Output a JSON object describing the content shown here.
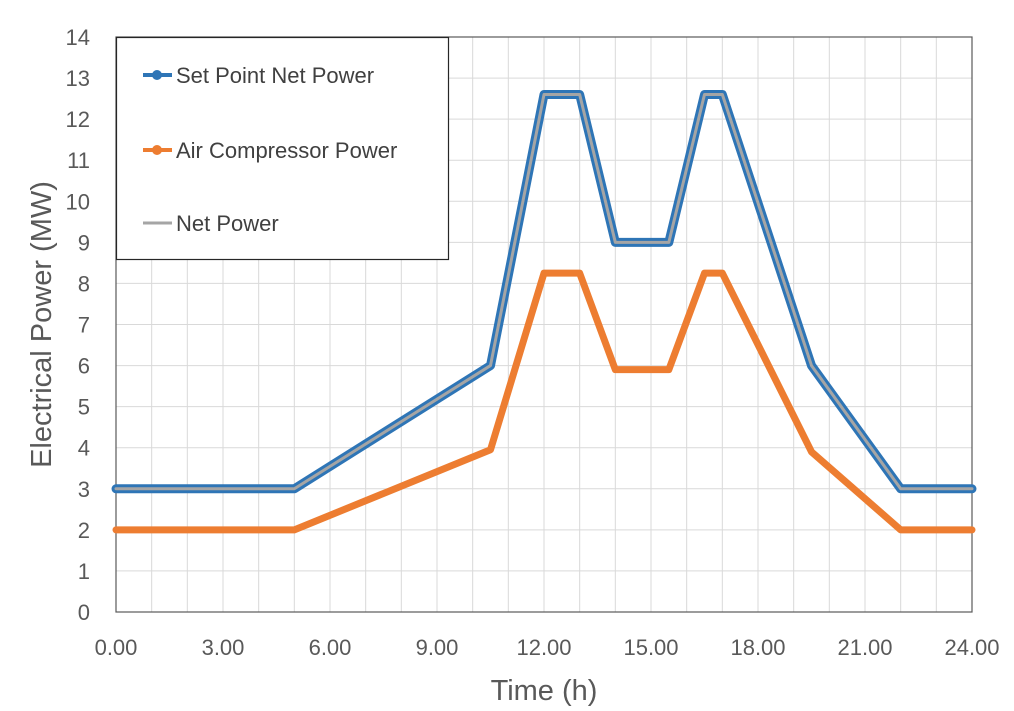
{
  "chart_data": {
    "type": "line",
    "xlabel": "Time (h)",
    "ylabel": "Electrical Power (MW)",
    "xlim": [
      0,
      24
    ],
    "ylim": [
      0,
      14
    ],
    "x_ticks": [
      "0.00",
      "3.00",
      "6.00",
      "9.00",
      "12.00",
      "15.00",
      "18.00",
      "21.00",
      "24.00"
    ],
    "x_tick_values": [
      0,
      3,
      6,
      9,
      12,
      15,
      18,
      21,
      24
    ],
    "y_ticks": [
      "0",
      "1",
      "2",
      "3",
      "4",
      "5",
      "6",
      "7",
      "8",
      "9",
      "10",
      "11",
      "12",
      "13",
      "14"
    ],
    "grid": true,
    "legend_position": "top-left",
    "series": [
      {
        "name": "Set Point Net Power",
        "color": "#2E75B6",
        "marker": "circle",
        "x": [
          0,
          5,
          10.5,
          12,
          13,
          14,
          15.5,
          16.5,
          17,
          19.5,
          22,
          24
        ],
        "y": [
          3,
          3,
          6,
          12.6,
          12.6,
          9,
          9,
          12.6,
          12.6,
          6,
          3,
          3
        ]
      },
      {
        "name": "Air Compressor Power",
        "color": "#ED7D31",
        "marker": "circle",
        "x": [
          0,
          5,
          10.5,
          12,
          13,
          14,
          15.5,
          16.5,
          17,
          19.5,
          22,
          24
        ],
        "y": [
          2,
          2,
          3.95,
          8.25,
          8.25,
          5.9,
          5.9,
          8.25,
          8.25,
          3.9,
          2,
          2
        ]
      },
      {
        "name": "Net Power",
        "color": "#A5A5A5",
        "marker": "none",
        "x": [
          0,
          5,
          10.5,
          12,
          13,
          14,
          15.5,
          16.5,
          17,
          19.5,
          22,
          24
        ],
        "y": [
          3,
          3,
          6,
          12.6,
          12.6,
          9,
          9,
          12.6,
          12.6,
          6,
          3,
          3
        ]
      }
    ]
  }
}
